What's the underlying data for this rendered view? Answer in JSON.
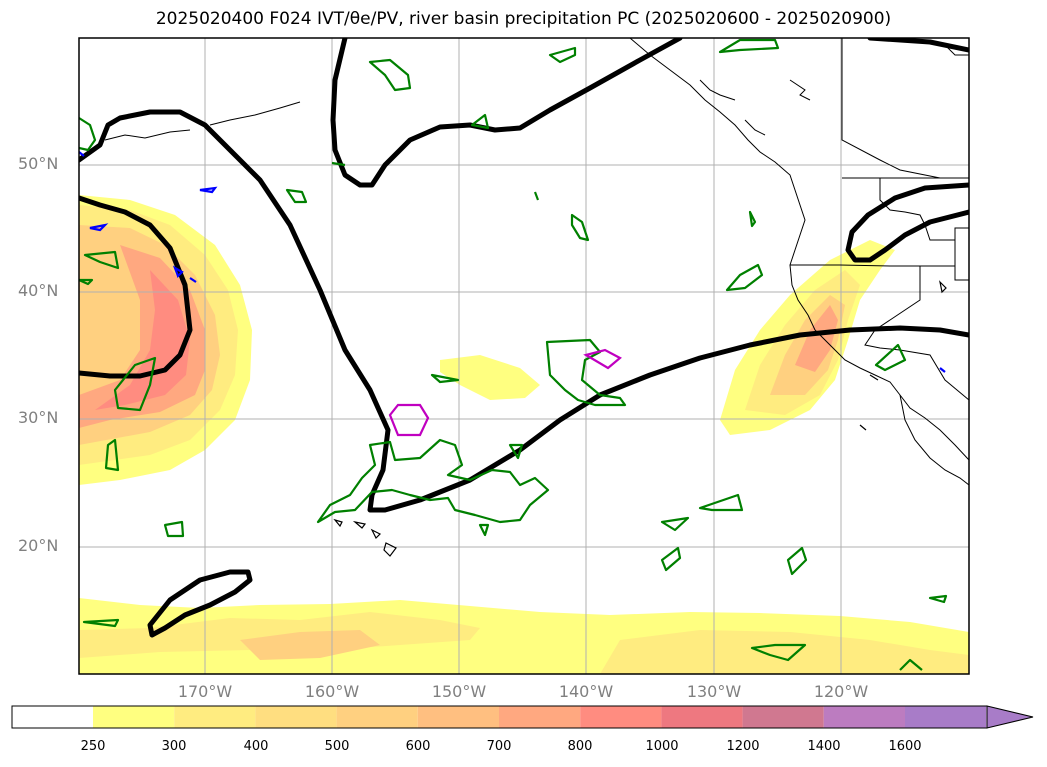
{
  "title": "2025020400 F024 IVT/θe/PV, river basin precipitation PC (2025020600 - 2025020900)",
  "map": {
    "lat_labels": [
      "50°N",
      "40°N",
      "30°N",
      "20°N"
    ],
    "lon_labels": [
      "170°W",
      "160°W",
      "150°W",
      "140°W",
      "130°W",
      "120°W"
    ],
    "grid": true
  },
  "colorbar": {
    "ticks": [
      "250",
      "300",
      "400",
      "500",
      "600",
      "700",
      "800",
      "1000",
      "1200",
      "1400",
      "1600"
    ],
    "colors": [
      "#ffffff",
      "#ffff80",
      "#ffec80",
      "#ffde80",
      "#ffd080",
      "#ffbf80",
      "#ffa880",
      "#ff8c80",
      "#ee7880",
      "#d07890",
      "#bc7cc0",
      "#a87cc8"
    ],
    "extend": "max"
  },
  "colors": {
    "contour_black": "#000000",
    "contour_green": "#008000",
    "contour_magenta": "#c000c0",
    "contour_blue": "#0000ff",
    "coastline": "#000000",
    "grid": "#b0b0b0"
  }
}
